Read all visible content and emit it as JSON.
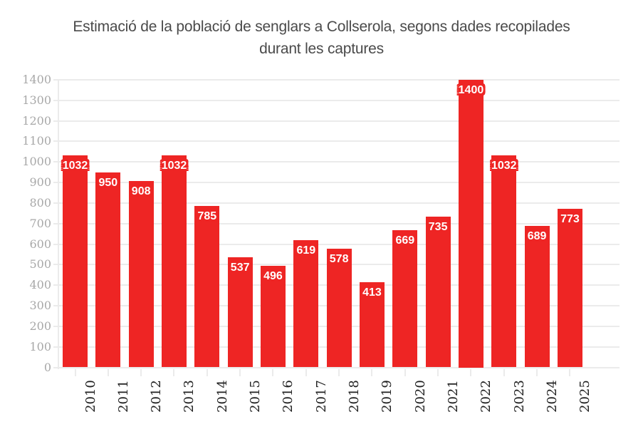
{
  "chart_data": {
    "type": "bar",
    "title": "Estimació de la població de senglars a Collserola, segons dades recopilades durant les captures",
    "title_lines": [
      "Estimació de la població de senglars a Collserola, segons dades recopilades",
      "durant les captures"
    ],
    "categories": [
      "2010",
      "2011",
      "2012",
      "2013",
      "2014",
      "2015",
      "2016",
      "2017",
      "2018",
      "2019",
      "2020",
      "2021",
      "2022",
      "2023",
      "2024",
      "2025"
    ],
    "values": [
      1032,
      950,
      908,
      1032,
      785,
      537,
      496,
      619,
      578,
      413,
      669,
      735,
      1400,
      1032,
      689,
      773
    ],
    "xlabel": "",
    "ylabel": "",
    "ylim": [
      0,
      1400
    ],
    "ytick_step": 100,
    "grid": true,
    "legend_position": "none",
    "bar_label_position": "inside-top",
    "colors": {
      "background": "#ffffff",
      "bar": "#ee2524",
      "bar_label_text": "#ffffff",
      "grid": "#ebebeb",
      "y_tick_label": "#a8a8a8",
      "x_tick_label": "#1f1f1f",
      "title": "#4a4a4a"
    }
  }
}
